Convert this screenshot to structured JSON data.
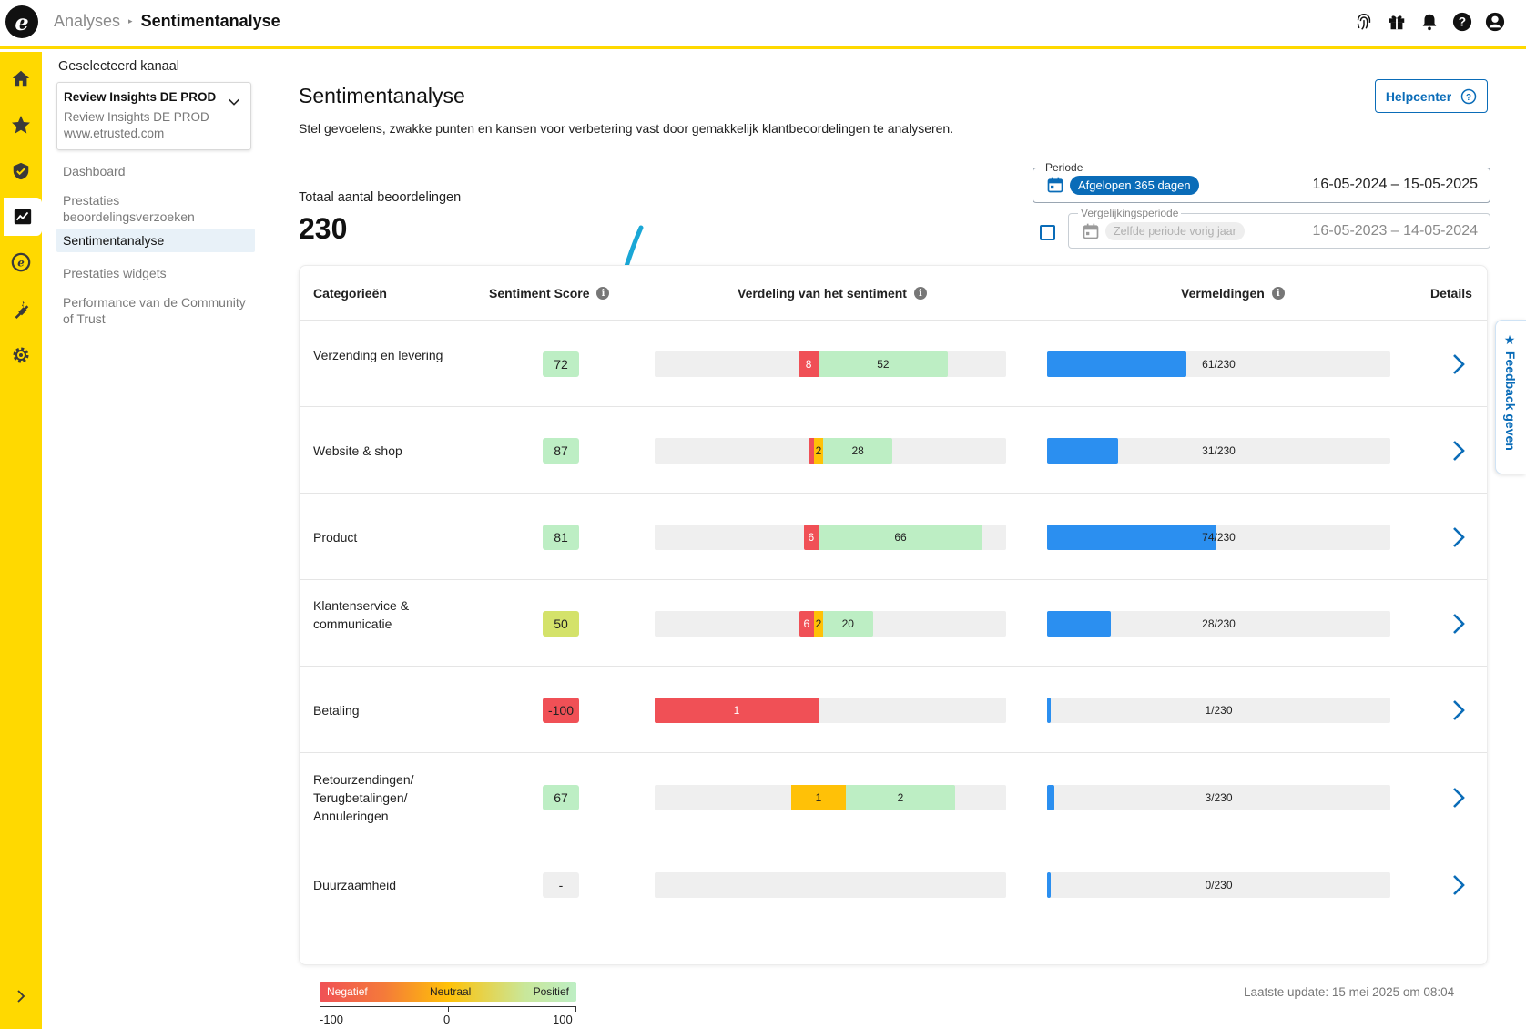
{
  "header": {
    "breadcrumb_parent": "Analyses",
    "breadcrumb_current": "Sentimentanalyse"
  },
  "rail": {
    "items": [
      "home-icon",
      "star-icon",
      "shield-check-icon",
      "analytics-icon",
      "etrusted-icon",
      "plug-icon",
      "gear-icon"
    ],
    "active": "analytics-icon"
  },
  "subnav": {
    "channel_label": "Geselecteerd kanaal",
    "channel_name": "Review Insights DE PROD",
    "channel_sub": "Review Insights DE PROD",
    "channel_url": "www.etrusted.com",
    "links": [
      {
        "label": "Dashboard",
        "active": false
      },
      {
        "label": "Prestaties beoordelingsverzoeken",
        "active": false
      },
      {
        "label": "Sentimentanalyse",
        "active": true
      },
      {
        "label": "Prestaties widgets",
        "active": false
      },
      {
        "label": "Performance van de Community of Trust",
        "active": false
      }
    ]
  },
  "page": {
    "title": "Sentimentanalyse",
    "subtitle": "Stel gevoelens, zwakke punten en kansen voor verbetering vast door gemakkelijk klantbeoordelingen te analyseren.",
    "help_label": "Helpcenter",
    "total_label": "Totaal aantal beoordelingen",
    "total_value": "230",
    "period": {
      "legend": "Periode",
      "pill": "Afgelopen 365 dagen",
      "range": "16-05-2024 – 15-05-2025"
    },
    "compare": {
      "legend": "Vergelijkingsperiode",
      "pill": "Zelfde periode vorig jaar",
      "range": "16-05-2023 – 14-05-2024",
      "checked": false
    }
  },
  "table": {
    "headers": {
      "category": "Categorieën",
      "score": "Sentiment Score",
      "distribution": "Verdeling van het sentiment",
      "mentions": "Vermeldingen",
      "details": "Details"
    },
    "rows": [
      {
        "category": "Verzending en levering",
        "score": "72",
        "score_color": "#bdeec4",
        "neg": 8,
        "neu": 0,
        "pos": 52,
        "neg_label": "8",
        "neu_label": "",
        "pos_label": "52",
        "mentions": 61,
        "mentions_label": "61/230"
      },
      {
        "category": "Website & shop",
        "score": "87",
        "score_color": "#bdeec4",
        "neg": 0.5,
        "neu": 2,
        "pos": 28,
        "neg_label": "",
        "neu_label": "2",
        "pos_label": "28",
        "mentions": 31,
        "mentions_label": "31/230"
      },
      {
        "category": "Product",
        "score": "81",
        "score_color": "#bdeec4",
        "neg": 6,
        "neu": 0,
        "pos": 66,
        "neg_label": "6",
        "neu_label": "",
        "pos_label": "66",
        "mentions": 74,
        "mentions_label": "74/230"
      },
      {
        "category": "Klantenservice & communicatie",
        "score": "50",
        "score_color": "#d4e26a",
        "neg": 6,
        "neu": 2,
        "pos": 20,
        "neg_label": "6",
        "neu_label": "2",
        "pos_label": "20",
        "mentions": 28,
        "mentions_label": "28/230"
      },
      {
        "category": "Betaling",
        "score": "-100",
        "score_color": "#f05056",
        "neg": 1,
        "neu": 0,
        "pos": 0,
        "neg_label": "1",
        "neu_label": "",
        "pos_label": "",
        "mentions": 1,
        "mentions_label": "1/230"
      },
      {
        "category": "Retourzendingen/ Terugbetalingen/ Annuleringen",
        "score": "67",
        "score_color": "#bdeec4",
        "neg": 0,
        "neu": 1,
        "pos": 2,
        "neg_label": "",
        "neu_label": "1",
        "pos_label": "2",
        "mentions": 3,
        "mentions_label": "3/230"
      },
      {
        "category": "Duurzaamheid",
        "score": "-",
        "score_color": "#efefef",
        "neg": 0,
        "neu": 0,
        "pos": 0,
        "neg_label": "",
        "neu_label": "",
        "pos_label": "",
        "mentions": 0,
        "mentions_label": "0/230"
      }
    ],
    "mentions_total": 230
  },
  "legend": {
    "negative": "Negatief",
    "neutral": "Neutraal",
    "positive": "Positief",
    "ticks": [
      "-100",
      "0",
      "100"
    ]
  },
  "last_update": "Laatste update: 15 mei 2025 om 08:04",
  "feedback_label": "★ Feedback geven",
  "colors": {
    "brand_yellow": "#ffd900",
    "accent_blue": "#0a6cb8",
    "negative": "#f05056",
    "neutral": "#ffc107",
    "positive": "#bdeec4",
    "mentions": "#2b8ff0"
  }
}
